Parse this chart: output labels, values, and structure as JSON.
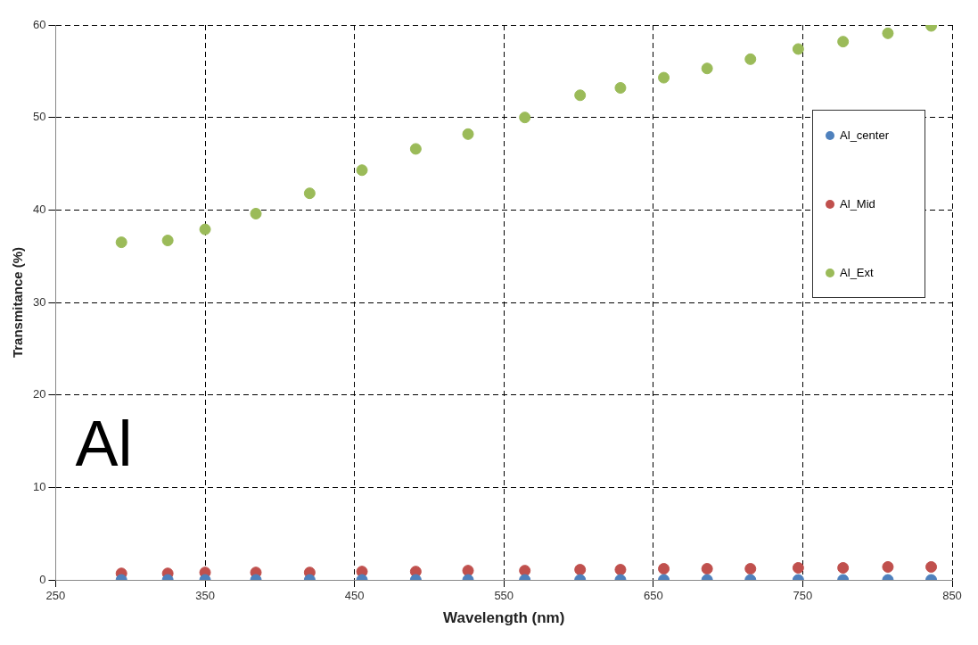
{
  "chart_data": {
    "type": "scatter",
    "xlabel": "Wavelength (nm)",
    "ylabel": "Transmitance (%)",
    "x": [
      294,
      325,
      350,
      384,
      420,
      455,
      491,
      526,
      564,
      601,
      628,
      657,
      686,
      715,
      747,
      777,
      807,
      836
    ],
    "series": [
      {
        "name": "Al_center",
        "color": "#4f81bd",
        "values": [
          0,
          0,
          0,
          0,
          0,
          0,
          0,
          0,
          0,
          0,
          0,
          0,
          0,
          0,
          0,
          0,
          0,
          0
        ]
      },
      {
        "name": "Al_Mid",
        "color": "#c0504d",
        "values": [
          0.7,
          0.7,
          0.8,
          0.8,
          0.8,
          0.9,
          0.9,
          1.0,
          1.0,
          1.1,
          1.1,
          1.2,
          1.2,
          1.2,
          1.3,
          1.3,
          1.4,
          1.4
        ]
      },
      {
        "name": "Al_Ext",
        "color": "#9bbb59",
        "values": [
          36.5,
          36.7,
          37.9,
          39.6,
          41.8,
          44.3,
          46.6,
          48.2,
          50.0,
          52.4,
          53.2,
          54.3,
          55.3,
          56.3,
          57.4,
          58.2,
          59.1,
          59.9
        ]
      }
    ],
    "xlim": [
      250,
      850
    ],
    "xticks": [
      250,
      350,
      450,
      550,
      650,
      750,
      850
    ],
    "ylim": [
      0,
      60
    ],
    "yticks": [
      0,
      10,
      20,
      30,
      40,
      50,
      60
    ],
    "grid": true,
    "line_style": "dashed",
    "marker": "circle",
    "legend": "top right",
    "annotations": [
      "Al"
    ]
  }
}
